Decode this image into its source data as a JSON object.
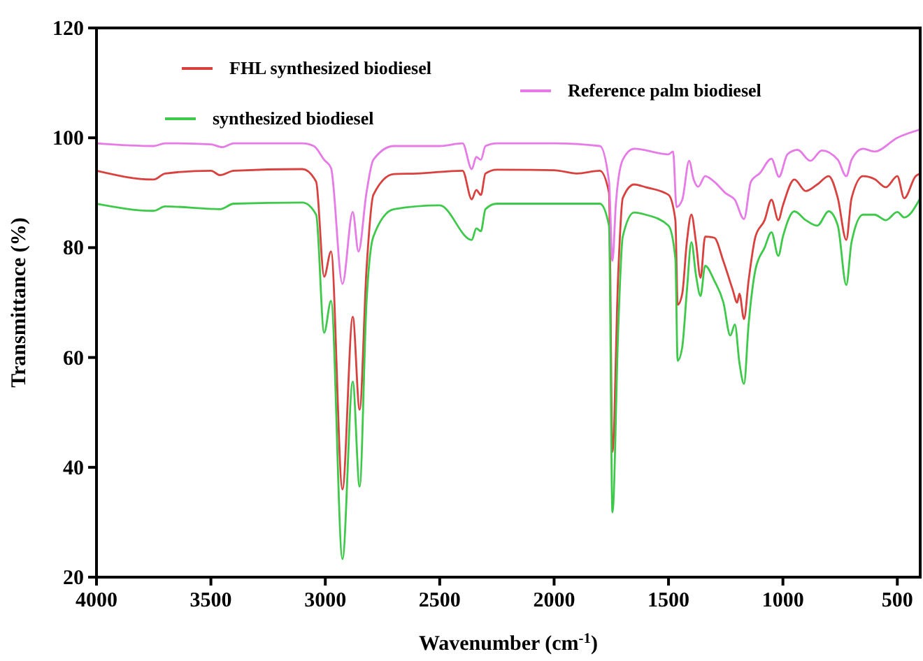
{
  "chart_data": {
    "type": "line",
    "xlabel": "Wavenumber (cm$^{-1}$)",
    "ylabel": "Transmittance (%)",
    "xlim": [
      4000,
      400
    ],
    "xticks": [
      4000,
      3500,
      3000,
      2500,
      2000,
      1500,
      1000,
      500
    ],
    "ylim": [
      20,
      120
    ],
    "yticks": [
      20,
      40,
      60,
      80,
      100,
      120
    ],
    "grid": false,
    "legend": "top",
    "marker": "none",
    "line_style": "solid",
    "series": [
      {
        "name": "FHL synthesized biodiesel",
        "color": "#d9413f",
        "x": [
          4000,
          3750,
          3700,
          3500,
          3460,
          3400,
          3100,
          3040,
          3005,
          2975,
          2925,
          2880,
          2850,
          2820,
          2790,
          2700,
          2600,
          2400,
          2360,
          2340,
          2320,
          2300,
          2250,
          2000,
          1900,
          1800,
          1760,
          1745,
          1720,
          1700,
          1650,
          1600,
          1500,
          1470,
          1460,
          1440,
          1420,
          1400,
          1380,
          1360,
          1340,
          1300,
          1260,
          1220,
          1200,
          1190,
          1170,
          1150,
          1120,
          1080,
          1050,
          1020,
          1000,
          950,
          900,
          850,
          800,
          760,
          723,
          700,
          650,
          600,
          550,
          500,
          470,
          420,
          400
        ],
        "values": [
          94,
          92.4,
          93.5,
          94,
          93.2,
          94,
          94.3,
          92,
          74.7,
          79.3,
          36,
          67.4,
          50.5,
          76,
          89.6,
          93.4,
          93.5,
          94,
          88.8,
          90.5,
          89.6,
          93.5,
          94.2,
          94.1,
          93.5,
          94,
          90,
          42.8,
          75,
          89,
          91.5,
          91,
          89.6,
          85,
          69.6,
          71.6,
          81,
          86,
          81,
          74.5,
          82,
          81.8,
          77.5,
          72.4,
          70,
          71.6,
          67,
          74,
          82,
          85,
          88.7,
          85,
          87.7,
          92.4,
          90.3,
          91.5,
          93,
          89,
          81.4,
          89,
          93,
          92.5,
          91,
          93,
          89,
          93,
          93.5
        ]
      },
      {
        "name": "synthesized biodiesel",
        "color": "#3ec94a",
        "x": [
          4000,
          3750,
          3700,
          3460,
          3400,
          3100,
          3040,
          3005,
          2975,
          2925,
          2880,
          2850,
          2820,
          2790,
          2700,
          2500,
          2360,
          2340,
          2320,
          2300,
          2250,
          2000,
          1800,
          1760,
          1745,
          1720,
          1700,
          1650,
          1600,
          1500,
          1470,
          1460,
          1440,
          1420,
          1400,
          1380,
          1360,
          1340,
          1300,
          1260,
          1230,
          1210,
          1190,
          1170,
          1150,
          1120,
          1080,
          1050,
          1020,
          1000,
          950,
          900,
          850,
          800,
          760,
          723,
          700,
          650,
          600,
          550,
          500,
          470,
          400
        ],
        "values": [
          88,
          86.7,
          87.5,
          87,
          88,
          88.2,
          86,
          64.5,
          70.3,
          23.3,
          55.6,
          36.5,
          70,
          82,
          87,
          87.7,
          81.4,
          83.5,
          83,
          87,
          88,
          88,
          88,
          84,
          31.8,
          65,
          82,
          86.4,
          86,
          84,
          78,
          59.4,
          61.9,
          72,
          81,
          75,
          71.2,
          76.7,
          74,
          70,
          64,
          66,
          59,
          55.2,
          66,
          76,
          80,
          82.8,
          78.5,
          82,
          86.6,
          85,
          84,
          86.6,
          84,
          73.2,
          81,
          86,
          86,
          85,
          86.5,
          85.5,
          89
        ]
      },
      {
        "name": "Reference palm biodiesel",
        "color": "#e67ae6",
        "x": [
          4000,
          3750,
          3700,
          3500,
          3450,
          3400,
          3100,
          3050,
          3005,
          2975,
          2925,
          2880,
          2855,
          2820,
          2790,
          2700,
          2500,
          2400,
          2360,
          2340,
          2320,
          2300,
          2250,
          2000,
          1800,
          1760,
          1745,
          1730,
          1700,
          1650,
          1500,
          1480,
          1465,
          1440,
          1410,
          1390,
          1370,
          1340,
          1300,
          1250,
          1210,
          1170,
          1140,
          1100,
          1050,
          1017,
          980,
          936,
          880,
          830,
          760,
          723,
          700,
          650,
          600,
          500,
          400
        ],
        "values": [
          99,
          98.5,
          99,
          98.8,
          98.3,
          99,
          99,
          98.5,
          96,
          94.5,
          73.4,
          86.5,
          79.3,
          90,
          96,
          98.5,
          98.5,
          99,
          94.3,
          96.5,
          96,
          98.5,
          99,
          99,
          98.5,
          92,
          77.6,
          88,
          96,
          98,
          97,
          97.5,
          87.4,
          88.7,
          95.8,
          92.4,
          91.1,
          93,
          92,
          89.9,
          88.7,
          85.2,
          92,
          93.6,
          96.2,
          92.9,
          97,
          97.8,
          95.8,
          97.7,
          96,
          93,
          96,
          98,
          97.5,
          100,
          101.5
        ]
      }
    ]
  }
}
